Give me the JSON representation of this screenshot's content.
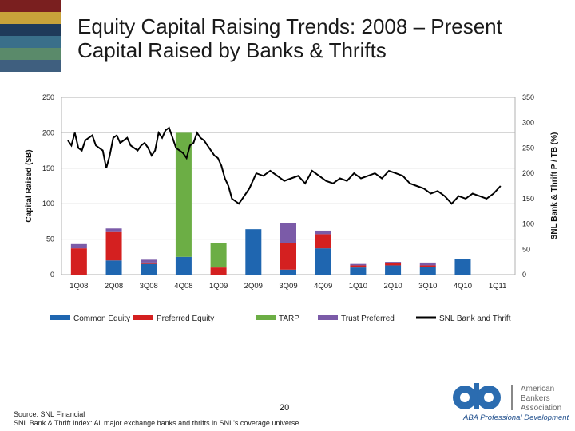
{
  "slide": {
    "title_line1": "Equity Capital Raising Trends: 2008 – Present",
    "title_line2": "Capital Raised by Banks & Thrifts",
    "page_number": "20",
    "source_line1": "Source: SNL Financial",
    "source_line2": "SNL Bank & Thrift Index: All major exchange banks and thrifts in SNL's coverage universe",
    "logo_text_line1": "American",
    "logo_text_line2": "Bankers",
    "logo_text_line3": "Association",
    "logo_tagline": "ABA Professional Development",
    "accent_stripes": [
      "#7a1f1f",
      "#c8a23a",
      "#1f3a5a",
      "#3a6f8a",
      "#5a8a6a",
      "#3f5f7f"
    ]
  },
  "chart_data": {
    "type": "bar",
    "ylabel": "Capital Raised ($B)",
    "y2label": "SNL Bank & Thrift P / TB (%)",
    "ylim": [
      0,
      250
    ],
    "y2lim": [
      0,
      350
    ],
    "yticks": [
      "0",
      "50",
      "100",
      "150",
      "200",
      "250"
    ],
    "y2ticks": [
      "0",
      "50",
      "100",
      "150",
      "200",
      "250",
      "300",
      "350"
    ],
    "grid": true,
    "legend_position": "bottom",
    "categories": [
      "1Q08",
      "2Q08",
      "3Q08",
      "4Q08",
      "1Q09",
      "2Q09",
      "3Q09",
      "4Q09",
      "1Q10",
      "2Q10",
      "3Q10",
      "4Q10",
      "1Q11"
    ],
    "series": [
      {
        "name": "Common Equity",
        "color": "#1f66b0",
        "values": [
          0,
          20,
          15,
          25,
          0,
          64,
          7,
          37,
          10,
          13,
          11,
          22,
          0
        ]
      },
      {
        "name": "Preferred Equity",
        "color": "#d42020",
        "values": [
          37,
          40,
          2,
          0,
          10,
          0,
          38,
          20,
          3,
          4,
          2,
          0,
          0
        ]
      },
      {
        "name": "TARP",
        "color": "#6cae45",
        "values": [
          0,
          0,
          0,
          175,
          35,
          0,
          0,
          0,
          0,
          0,
          0,
          0,
          0
        ]
      },
      {
        "name": "Trust Preferred",
        "color": "#7b5ba8",
        "values": [
          6,
          5,
          4,
          0,
          0,
          0,
          28,
          5,
          2,
          1,
          4,
          0,
          0
        ]
      }
    ],
    "line_series": {
      "name": "SNL Bank and Thrift",
      "color": "#000000",
      "axis": "secondary",
      "x": [
        0,
        0.1,
        0.2,
        0.3,
        0.4,
        0.5,
        0.6,
        0.7,
        0.8,
        0.9,
        1.0,
        1.1,
        1.2,
        1.3,
        1.4,
        1.5,
        1.6,
        1.7,
        1.8,
        1.9,
        2.0,
        2.1,
        2.2,
        2.3,
        2.4,
        2.5,
        2.6,
        2.7,
        2.8,
        2.9,
        3.0,
        3.1,
        3.2,
        3.3,
        3.4,
        3.5,
        3.6,
        3.7,
        3.8,
        3.9,
        4.0,
        4.1,
        4.2,
        4.3,
        4.4,
        4.5,
        4.6,
        4.7,
        4.8,
        4.9,
        5.0,
        5.2,
        5.4,
        5.6,
        5.8,
        6.0,
        6.2,
        6.4,
        6.6,
        6.8,
        7.0,
        7.2,
        7.4,
        7.6,
        7.8,
        8.0,
        8.2,
        8.4,
        8.6,
        8.8,
        9.0,
        9.2,
        9.4,
        9.6,
        9.8,
        10.0,
        10.2,
        10.4,
        10.6,
        10.8,
        11.0,
        11.2,
        11.4,
        11.6,
        11.8,
        12.0,
        12.2,
        12.4
      ],
      "values": [
        265,
        255,
        280,
        250,
        245,
        265,
        270,
        275,
        255,
        250,
        245,
        210,
        235,
        270,
        275,
        260,
        265,
        270,
        255,
        250,
        245,
        255,
        260,
        250,
        235,
        245,
        280,
        270,
        285,
        290,
        270,
        250,
        245,
        240,
        230,
        255,
        260,
        280,
        270,
        265,
        255,
        245,
        235,
        230,
        215,
        190,
        175,
        150,
        145,
        140,
        150,
        170,
        200,
        195,
        205,
        195,
        185,
        190,
        195,
        180,
        205,
        195,
        185,
        180,
        190,
        185,
        200,
        190,
        195,
        200,
        190,
        205,
        200,
        195,
        180,
        175,
        170,
        160,
        165,
        155,
        140,
        155,
        150,
        160,
        155,
        150,
        160,
        175
      ]
    }
  }
}
